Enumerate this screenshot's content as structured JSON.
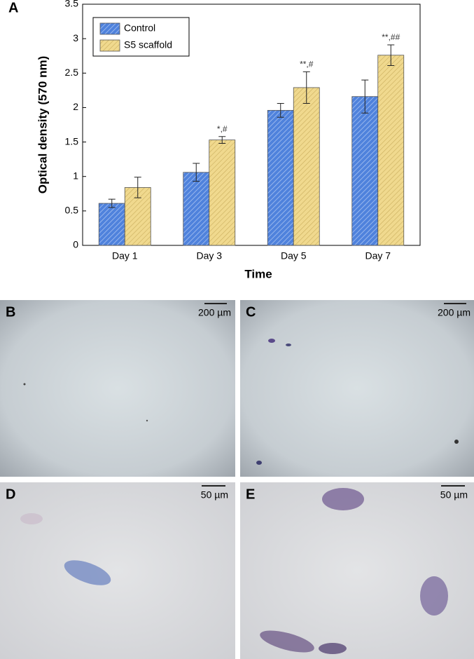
{
  "chart_data": {
    "type": "bar",
    "panel_label": "A",
    "ylabel": "Optical density (570 nm)",
    "xlabel": "Time",
    "categories": [
      "Day 1",
      "Day 3",
      "Day 5",
      "Day 7"
    ],
    "series": [
      {
        "name": "Control",
        "color": "#4f82dc",
        "values": [
          0.61,
          1.06,
          1.96,
          2.16
        ],
        "errors": [
          0.06,
          0.13,
          0.1,
          0.24
        ]
      },
      {
        "name": "S5 scaffold",
        "color": "#f0d98e",
        "values": [
          0.84,
          1.53,
          2.29,
          2.76
        ],
        "errors": [
          0.15,
          0.05,
          0.23,
          0.15
        ],
        "annotations": [
          null,
          "*,#",
          "**,#",
          "**,##"
        ]
      }
    ],
    "ylim": [
      0,
      3.5
    ],
    "yticks": [
      0,
      0.5,
      1,
      1.5,
      2,
      2.5,
      3,
      3.5
    ],
    "legend": "upper left"
  },
  "panels": [
    {
      "label": "B",
      "scale": "200 µm"
    },
    {
      "label": "C",
      "scale": "200 µm"
    },
    {
      "label": "D",
      "scale": "50 µm"
    },
    {
      "label": "E",
      "scale": "50 µm"
    }
  ]
}
